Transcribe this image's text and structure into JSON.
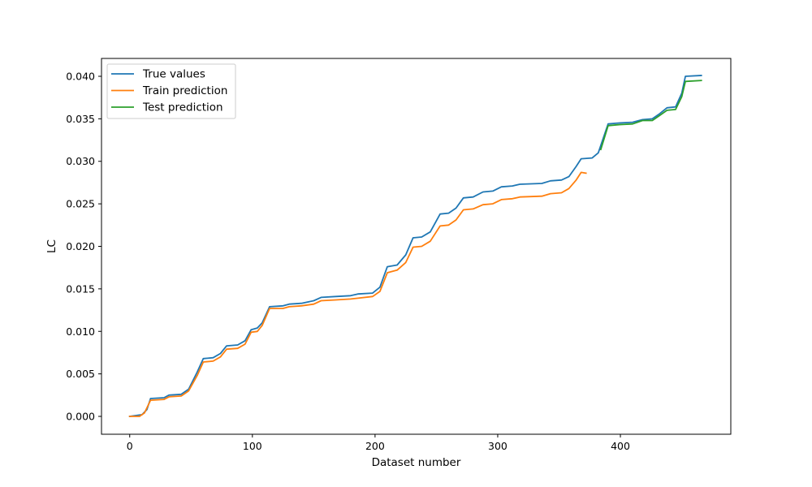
{
  "chart_data": {
    "type": "line",
    "title": "",
    "xlabel": "Dataset number",
    "ylabel": "LC",
    "xlim": [
      -23,
      490
    ],
    "ylim": [
      -0.0021,
      0.0421
    ],
    "x_ticks": [
      0,
      100,
      200,
      300,
      400
    ],
    "y_ticks": [
      0.0,
      0.005,
      0.01,
      0.015,
      0.02,
      0.025,
      0.03,
      0.035,
      0.04
    ],
    "y_tick_labels": [
      "0.000",
      "0.005",
      "0.010",
      "0.015",
      "0.020",
      "0.025",
      "0.030",
      "0.035",
      "0.040"
    ],
    "grid": false,
    "legend_position": "top-left",
    "series": [
      {
        "name": "True values",
        "color": "#1f77b4",
        "points": [
          [
            0,
            0.0
          ],
          [
            10,
            0.0002
          ],
          [
            14,
            0.0008
          ],
          [
            17,
            0.0021
          ],
          [
            28,
            0.0022
          ],
          [
            32,
            0.0025
          ],
          [
            42,
            0.0026
          ],
          [
            48,
            0.0032
          ],
          [
            55,
            0.0052
          ],
          [
            60,
            0.0068
          ],
          [
            68,
            0.0069
          ],
          [
            74,
            0.0074
          ],
          [
            79,
            0.0083
          ],
          [
            88,
            0.0084
          ],
          [
            94,
            0.0089
          ],
          [
            99,
            0.0102
          ],
          [
            104,
            0.0104
          ],
          [
            108,
            0.011
          ],
          [
            114,
            0.0129
          ],
          [
            125,
            0.013
          ],
          [
            130,
            0.0132
          ],
          [
            140,
            0.0133
          ],
          [
            150,
            0.0136
          ],
          [
            156,
            0.014
          ],
          [
            168,
            0.0141
          ],
          [
            180,
            0.0142
          ],
          [
            186,
            0.0144
          ],
          [
            198,
            0.0145
          ],
          [
            204,
            0.0152
          ],
          [
            210,
            0.0176
          ],
          [
            218,
            0.0178
          ],
          [
            225,
            0.019
          ],
          [
            231,
            0.021
          ],
          [
            238,
            0.0211
          ],
          [
            245,
            0.0217
          ],
          [
            253,
            0.0238
          ],
          [
            260,
            0.0239
          ],
          [
            266,
            0.0245
          ],
          [
            272,
            0.0257
          ],
          [
            280,
            0.0258
          ],
          [
            288,
            0.0264
          ],
          [
            296,
            0.0265
          ],
          [
            303,
            0.027
          ],
          [
            312,
            0.0271
          ],
          [
            318,
            0.0273
          ],
          [
            336,
            0.0274
          ],
          [
            343,
            0.0277
          ],
          [
            352,
            0.0278
          ],
          [
            358,
            0.0282
          ],
          [
            364,
            0.0294
          ],
          [
            368,
            0.0303
          ],
          [
            377,
            0.0304
          ],
          [
            382,
            0.031
          ],
          [
            390,
            0.0344
          ],
          [
            398,
            0.0345
          ],
          [
            410,
            0.0346
          ],
          [
            418,
            0.0349
          ],
          [
            426,
            0.035
          ],
          [
            432,
            0.0356
          ],
          [
            438,
            0.0363
          ],
          [
            445,
            0.0364
          ],
          [
            450,
            0.038
          ],
          [
            453,
            0.04
          ],
          [
            466,
            0.0401
          ]
        ]
      },
      {
        "name": "Train prediction",
        "color": "#ff7f0e",
        "points": [
          [
            0,
            0.0
          ],
          [
            8,
            0.0
          ],
          [
            12,
            0.0004
          ],
          [
            17,
            0.0019
          ],
          [
            28,
            0.002
          ],
          [
            32,
            0.0023
          ],
          [
            42,
            0.0024
          ],
          [
            48,
            0.003
          ],
          [
            55,
            0.0048
          ],
          [
            60,
            0.0064
          ],
          [
            68,
            0.0065
          ],
          [
            74,
            0.007
          ],
          [
            79,
            0.0079
          ],
          [
            88,
            0.008
          ],
          [
            94,
            0.0085
          ],
          [
            99,
            0.0099
          ],
          [
            104,
            0.01
          ],
          [
            108,
            0.0107
          ],
          [
            114,
            0.0127
          ],
          [
            125,
            0.0127
          ],
          [
            130,
            0.0129
          ],
          [
            140,
            0.013
          ],
          [
            150,
            0.0132
          ],
          [
            156,
            0.0136
          ],
          [
            168,
            0.0137
          ],
          [
            180,
            0.0138
          ],
          [
            186,
            0.0139
          ],
          [
            198,
            0.0141
          ],
          [
            204,
            0.0147
          ],
          [
            210,
            0.0169
          ],
          [
            218,
            0.0172
          ],
          [
            225,
            0.0181
          ],
          [
            231,
            0.0199
          ],
          [
            238,
            0.02
          ],
          [
            245,
            0.0206
          ],
          [
            253,
            0.0224
          ],
          [
            260,
            0.0225
          ],
          [
            266,
            0.0231
          ],
          [
            272,
            0.0243
          ],
          [
            280,
            0.0244
          ],
          [
            288,
            0.0249
          ],
          [
            296,
            0.025
          ],
          [
            303,
            0.0255
          ],
          [
            312,
            0.0256
          ],
          [
            318,
            0.0258
          ],
          [
            336,
            0.0259
          ],
          [
            343,
            0.0262
          ],
          [
            352,
            0.0263
          ],
          [
            358,
            0.0268
          ],
          [
            364,
            0.0278
          ],
          [
            368,
            0.0287
          ],
          [
            372,
            0.0286
          ]
        ]
      },
      {
        "name": "Test prediction",
        "color": "#2ca02c",
        "points": [
          [
            384,
            0.0314
          ],
          [
            390,
            0.0342
          ],
          [
            398,
            0.0343
          ],
          [
            410,
            0.0344
          ],
          [
            418,
            0.0348
          ],
          [
            426,
            0.0348
          ],
          [
            432,
            0.0354
          ],
          [
            438,
            0.036
          ],
          [
            445,
            0.0361
          ],
          [
            450,
            0.0376
          ],
          [
            453,
            0.0394
          ],
          [
            466,
            0.0395
          ]
        ]
      }
    ]
  }
}
